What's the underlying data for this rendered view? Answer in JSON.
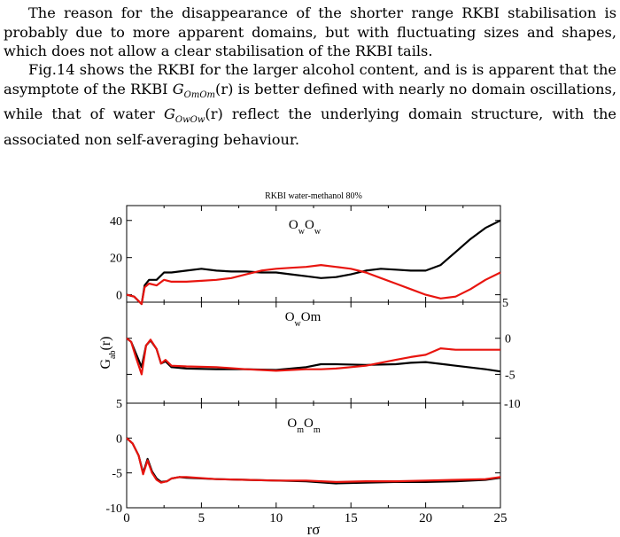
{
  "paragraphs": {
    "p1": "The reason for the disappearance of the shorter range RKBI stabilisation is probably due to more apparent domains, but with fluctuating sizes and shapes, which does not allow a clear stabilisation of the RKBI tails.",
    "p2_a": "Fig.14 shows the RKBI for the larger alcohol content, and is is apparent that the asymptote of the RKBI ",
    "p2_b": " is better defined with nearly no domain oscillations, while that of water ",
    "p2_c": " reflect the underlying domain structure, with the associated non self-averaging behaviour."
  },
  "math": {
    "g_mm": "G",
    "g_mm_sub": "OmOm",
    "g_ww": "G",
    "g_ww_sub": "OwOw",
    "arg": "(r)"
  },
  "colors": {
    "series_a": "#000000",
    "series_b": "#e8150f"
  },
  "chart_data": [
    {
      "type": "line",
      "title": "RKBI water-methanol  80%",
      "panel_label": "OwOw",
      "ylim": [
        -4,
        48
      ],
      "left_ticks": [
        "40",
        "20",
        "0"
      ],
      "right_ticks": [
        "5"
      ],
      "xlim": [
        0,
        25
      ],
      "series": [
        {
          "color": "#000000",
          "x": [
            0,
            0.5,
            1,
            1.2,
            1.5,
            2,
            2.5,
            3,
            4,
            5,
            6,
            7,
            8,
            9,
            10,
            11,
            12,
            13,
            14,
            15,
            16,
            17,
            18,
            19,
            20,
            21,
            22,
            23,
            24,
            25
          ],
          "values": [
            0,
            -1,
            -5,
            5,
            8,
            8,
            12,
            12,
            13,
            14,
            13,
            12.5,
            12.5,
            12,
            12,
            11,
            10,
            9,
            9.5,
            11,
            13,
            14,
            13.5,
            13,
            13,
            16,
            23,
            30,
            36,
            40
          ]
        },
        {
          "color": "#e8150f",
          "x": [
            0,
            0.5,
            1,
            1.2,
            1.5,
            2,
            2.5,
            3,
            4,
            5,
            6,
            7,
            8,
            9,
            10,
            11,
            12,
            13,
            14,
            15,
            16,
            17,
            18,
            19,
            20,
            21,
            22,
            23,
            24,
            25
          ],
          "values": [
            0,
            -1,
            -5,
            4,
            6,
            5,
            8,
            7,
            7,
            7.5,
            8,
            9,
            11,
            13,
            14,
            14.5,
            15,
            16,
            15,
            14,
            12,
            9,
            6,
            3,
            0,
            -2,
            -1,
            3,
            8,
            12
          ]
        }
      ]
    },
    {
      "type": "line",
      "panel_label": "OwOm",
      "ylim": [
        -9,
        5
      ],
      "right_ticks": [
        "0",
        "-5",
        "-10"
      ],
      "ylabel": "Gab(r)",
      "xlim": [
        0,
        25
      ],
      "series": [
        {
          "color": "#000000",
          "x": [
            0,
            0.3,
            0.6,
            1,
            1.3,
            1.6,
            2,
            2.3,
            2.6,
            3,
            4,
            6,
            8,
            10,
            12,
            13,
            14,
            16,
            18,
            19,
            20,
            22,
            24,
            25
          ],
          "values": [
            0,
            -0.5,
            -2,
            -4,
            -1,
            -0.3,
            -1.5,
            -3.5,
            -3.2,
            -4,
            -4.2,
            -4.3,
            -4.3,
            -4.4,
            -4,
            -3.6,
            -3.6,
            -3.7,
            -3.6,
            -3.4,
            -3.3,
            -3.8,
            -4.3,
            -4.6
          ]
        },
        {
          "color": "#e8150f",
          "x": [
            0,
            0.3,
            0.6,
            1,
            1.3,
            1.6,
            2,
            2.3,
            2.6,
            3,
            4,
            6,
            8,
            10,
            12,
            13,
            14,
            16,
            18,
            19,
            20,
            21,
            22,
            24,
            25
          ],
          "values": [
            0,
            -0.5,
            -2.5,
            -5,
            -1,
            -0.2,
            -1.5,
            -3.5,
            -3,
            -3.8,
            -3.9,
            -4,
            -4.3,
            -4.5,
            -4.3,
            -4.3,
            -4.2,
            -3.8,
            -3,
            -2.6,
            -2.3,
            -1.4,
            -1.6,
            -1.6,
            -1.6
          ]
        }
      ]
    },
    {
      "type": "line",
      "panel_label": "OmOm",
      "ylim": [
        -10,
        5
      ],
      "left_ticks": [
        "5",
        "0",
        "-5",
        "-10"
      ],
      "xlabel": "rσ",
      "xticks": [
        "0",
        "5",
        "10",
        "15",
        "20",
        "25"
      ],
      "xlim": [
        0,
        25
      ],
      "series": [
        {
          "color": "#000000",
          "x": [
            0,
            0.4,
            0.8,
            1.1,
            1.4,
            1.7,
            2,
            2.3,
            2.7,
            3,
            3.5,
            4,
            6,
            8,
            10,
            12,
            14,
            16,
            18,
            20,
            22,
            24,
            25
          ],
          "values": [
            0,
            -0.8,
            -2.5,
            -5,
            -3,
            -4.8,
            -5.8,
            -6.3,
            -6.2,
            -5.8,
            -5.6,
            -5.7,
            -5.9,
            -6,
            -6.1,
            -6.2,
            -6.5,
            -6.4,
            -6.3,
            -6.3,
            -6.2,
            -6,
            -5.7
          ]
        },
        {
          "color": "#e8150f",
          "x": [
            0,
            0.4,
            0.8,
            1.1,
            1.4,
            1.7,
            2,
            2.3,
            2.7,
            3,
            3.5,
            4,
            6,
            8,
            10,
            12,
            14,
            16,
            18,
            20,
            22,
            24,
            25
          ],
          "values": [
            0,
            -0.8,
            -2.5,
            -5.2,
            -3.2,
            -5,
            -6,
            -6.4,
            -6.2,
            -5.8,
            -5.6,
            -5.6,
            -5.9,
            -6,
            -6.1,
            -6.1,
            -6.3,
            -6.2,
            -6.2,
            -6.1,
            -6,
            -5.9,
            -5.6
          ]
        }
      ]
    }
  ]
}
